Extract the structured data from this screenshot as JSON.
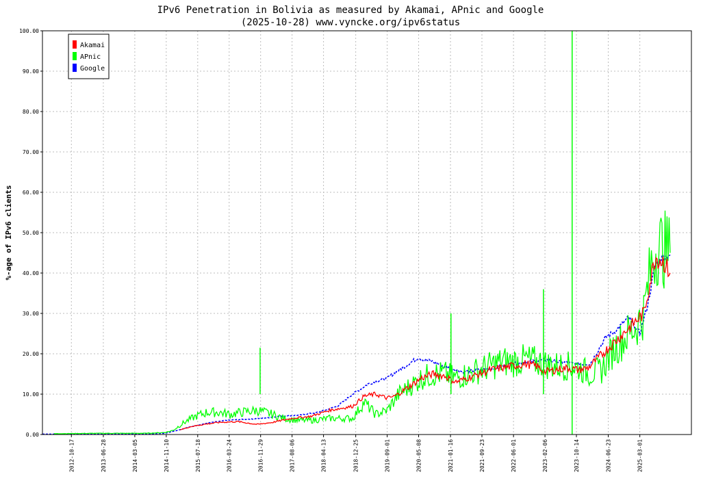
{
  "chart_data": {
    "type": "line",
    "title": "IPv6 Penetration in Bolivia as measured by Akamai, APnic and Google",
    "subtitle": "(2025-10-28) www.vyncke.org/ipv6status",
    "ylabel": "%-age of IPv6 clients",
    "xlabel": "",
    "ylim": [
      0,
      100
    ],
    "xlim": [
      "2012-03-01",
      "2026-04-15"
    ],
    "y_ticks": [
      "0.00",
      "10.00",
      "20.00",
      "30.00",
      "40.00",
      "50.00",
      "60.00",
      "70.00",
      "80.00",
      "90.00",
      "100.00"
    ],
    "x_ticks": [
      "2012-10-17",
      "2013-06-28",
      "2014-03-05",
      "2014-11-10",
      "2015-07-18",
      "2016-03-24",
      "2016-11-29",
      "2017-08-06",
      "2018-04-13",
      "2018-12-25",
      "2019-09-01",
      "2020-05-08",
      "2021-01-16",
      "2021-09-23",
      "2022-06-01",
      "2023-02-06",
      "2023-10-14",
      "2024-06-23",
      "2025-03-01"
    ],
    "grid": true,
    "legend_position": "top-left",
    "series": [
      {
        "name": "Akamai",
        "color": "#ff0000",
        "points": [
          [
            "2015-03-01",
            1.2
          ],
          [
            "2015-06-01",
            2.0
          ],
          [
            "2015-09-01",
            2.5
          ],
          [
            "2016-01-01",
            3.0
          ],
          [
            "2016-06-01",
            3.2
          ],
          [
            "2016-11-01",
            2.5
          ],
          [
            "2017-03-01",
            3.0
          ],
          [
            "2017-08-01",
            4.0
          ],
          [
            "2018-01-01",
            4.5
          ],
          [
            "2018-06-01",
            6.0
          ],
          [
            "2018-12-01",
            7.0
          ],
          [
            "2019-03-01",
            9.5
          ],
          [
            "2019-06-01",
            10.0
          ],
          [
            "2019-09-01",
            9.0
          ],
          [
            "2019-11-01",
            9.5
          ],
          [
            "2020-03-01",
            12.0
          ],
          [
            "2020-06-01",
            14.0
          ],
          [
            "2020-09-01",
            15.0
          ],
          [
            "2020-12-01",
            14.5
          ],
          [
            "2021-03-01",
            13.0
          ],
          [
            "2021-06-01",
            14.0
          ],
          [
            "2021-09-01",
            15.0
          ],
          [
            "2021-12-01",
            16.0
          ],
          [
            "2022-03-01",
            16.5
          ],
          [
            "2022-06-01",
            17.0
          ],
          [
            "2022-09-01",
            17.5
          ],
          [
            "2022-12-01",
            17.0
          ],
          [
            "2023-02-01",
            15.5
          ],
          [
            "2023-05-01",
            16.0
          ],
          [
            "2023-08-01",
            16.5
          ],
          [
            "2023-11-01",
            16.0
          ],
          [
            "2024-01-15",
            16.5
          ],
          [
            "2025-04-01",
            30.0
          ],
          [
            "2025-07-01",
            44.0
          ],
          [
            "2025-09-01",
            43.0
          ],
          [
            "2025-10-28",
            40.0
          ]
        ]
      },
      {
        "name": "APnic",
        "color": "#00ff00",
        "points": [
          [
            "2012-06-01",
            0.2
          ],
          [
            "2013-06-01",
            0.3
          ],
          [
            "2014-06-01",
            0.3
          ],
          [
            "2014-11-01",
            0.5
          ],
          [
            "2015-01-01",
            1.0
          ],
          [
            "2015-04-01",
            3.0
          ],
          [
            "2015-07-01",
            4.5
          ],
          [
            "2015-10-01",
            5.5
          ],
          [
            "2016-01-01",
            5.5
          ],
          [
            "2016-04-01",
            5.0
          ],
          [
            "2016-07-01",
            5.5
          ],
          [
            "2016-11-01",
            6.0
          ],
          [
            "2017-03-01",
            5.0
          ],
          [
            "2017-06-01",
            4.0
          ],
          [
            "2017-10-01",
            3.5
          ],
          [
            "2018-01-01",
            3.5
          ],
          [
            "2018-06-01",
            4.0
          ],
          [
            "2018-12-01",
            4.0
          ],
          [
            "2019-03-01",
            8.0
          ],
          [
            "2019-06-01",
            5.0
          ],
          [
            "2019-09-01",
            6.0
          ],
          [
            "2019-12-01",
            10.0
          ],
          [
            "2020-03-01",
            12.0
          ],
          [
            "2020-06-01",
            14.0
          ],
          [
            "2020-09-01",
            15.0
          ],
          [
            "2020-12-01",
            15.0
          ],
          [
            "2021-03-01",
            14.0
          ],
          [
            "2021-06-01",
            15.0
          ],
          [
            "2021-09-01",
            16.0
          ],
          [
            "2021-12-01",
            17.0
          ],
          [
            "2022-03-01",
            18.0
          ],
          [
            "2022-06-01",
            18.0
          ],
          [
            "2022-09-01",
            18.5
          ],
          [
            "2022-12-01",
            18.0
          ],
          [
            "2023-02-01",
            17.5
          ],
          [
            "2023-05-01",
            17.0
          ],
          [
            "2023-08-01",
            17.0
          ],
          [
            "2023-11-01",
            16.5
          ],
          [
            "2024-02-01",
            15.0
          ],
          [
            "2024-05-01",
            16.0
          ],
          [
            "2024-08-01",
            21.0
          ],
          [
            "2024-11-01",
            24.0
          ],
          [
            "2025-02-01",
            27.0
          ],
          [
            "2025-04-01",
            30.0
          ],
          [
            "2025-06-01",
            42.0
          ],
          [
            "2025-07-15",
            47.0
          ],
          [
            "2025-09-01",
            46.0
          ],
          [
            "2025-10-28",
            45.0
          ]
        ]
      },
      {
        "name": "Google",
        "color": "#0000ff",
        "points": [
          [
            "2012-03-01",
            0.1
          ],
          [
            "2013-06-01",
            0.1
          ],
          [
            "2014-06-01",
            0.15
          ],
          [
            "2014-11-01",
            0.3
          ],
          [
            "2015-02-01",
            1.0
          ],
          [
            "2015-06-01",
            2.0
          ],
          [
            "2015-10-01",
            2.8
          ],
          [
            "2016-03-01",
            3.5
          ],
          [
            "2016-08-01",
            3.8
          ],
          [
            "2016-12-01",
            4.0
          ],
          [
            "2017-05-01",
            4.5
          ],
          [
            "2017-10-01",
            4.8
          ],
          [
            "2018-03-01",
            5.5
          ],
          [
            "2018-08-01",
            7.0
          ],
          [
            "2018-12-01",
            10.0
          ],
          [
            "2019-04-01",
            12.5
          ],
          [
            "2019-09-01",
            14.0
          ],
          [
            "2020-01-01",
            16.5
          ],
          [
            "2020-05-01",
            19.0
          ],
          [
            "2020-09-01",
            18.0
          ],
          [
            "2021-01-01",
            16.5
          ],
          [
            "2021-05-01",
            15.5
          ],
          [
            "2021-09-01",
            16.0
          ],
          [
            "2022-01-01",
            16.5
          ],
          [
            "2022-06-01",
            17.5
          ],
          [
            "2022-10-01",
            18.0
          ],
          [
            "2023-02-01",
            18.5
          ],
          [
            "2023-06-01",
            18.0
          ],
          [
            "2023-10-01",
            17.5
          ],
          [
            "2024-02-01",
            17.5
          ],
          [
            "2024-06-01",
            24.0
          ],
          [
            "2024-09-01",
            26.0
          ],
          [
            "2024-12-01",
            29.0
          ],
          [
            "2025-03-01",
            25.0
          ],
          [
            "2025-05-01",
            32.0
          ],
          [
            "2025-07-01",
            42.0
          ],
          [
            "2025-09-01",
            44.0
          ],
          [
            "2025-10-28",
            44.5
          ]
        ]
      }
    ],
    "spikes": [
      {
        "series": "APnic",
        "date": "2016-11-25",
        "value": 21.5
      },
      {
        "series": "APnic",
        "date": "2021-01-20",
        "value": 30.0
      },
      {
        "series": "APnic",
        "date": "2023-01-25",
        "value": 36.0
      },
      {
        "series": "APnic",
        "date": "2023-09-10",
        "value": 100.0
      },
      {
        "series": "APnic",
        "date": "2023-09-10",
        "value": 0.0
      }
    ]
  },
  "legend": {
    "items": [
      {
        "label": "Akamai",
        "color": "#ff0000"
      },
      {
        "label": "APnic",
        "color": "#00ff00"
      },
      {
        "label": "Google",
        "color": "#0000ff"
      }
    ]
  }
}
